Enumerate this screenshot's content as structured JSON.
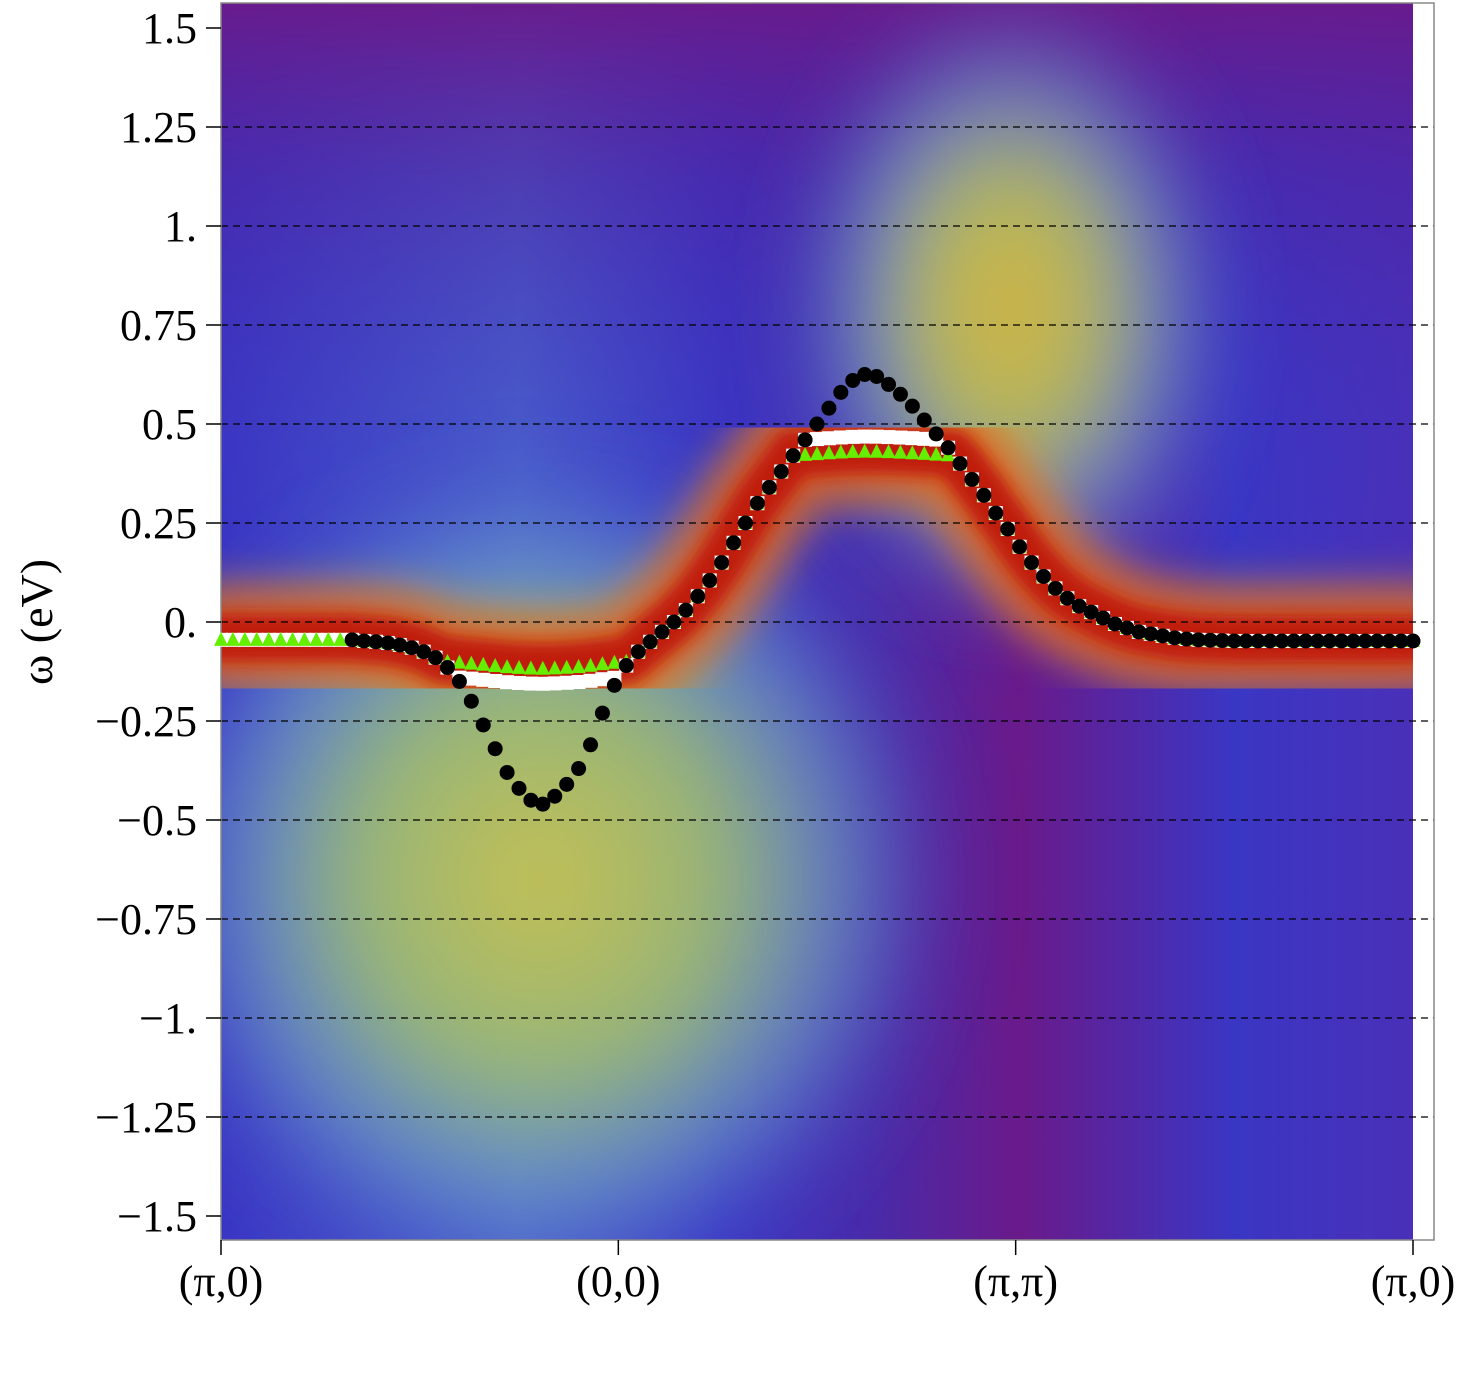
{
  "chart_data": {
    "type": "heatmap",
    "title": "",
    "xlabel": "",
    "ylabel": "ω (eV)",
    "ylim": [
      -1.57,
      1.57
    ],
    "xlim": [
      0,
      3
    ],
    "grid": "horizontal dashed lines at y ticks",
    "x_ticks": [
      {
        "x": 0,
        "label": "(π,0)"
      },
      {
        "x": 1,
        "label": "(0,0)"
      },
      {
        "x": 2,
        "label": "(π,π)"
      },
      {
        "x": 3,
        "label": "(π,0)"
      }
    ],
    "y_ticks": [
      {
        "y": 1.5,
        "label": "1.5"
      },
      {
        "y": 1.25,
        "label": "1.25"
      },
      {
        "y": 1.0,
        "label": "1."
      },
      {
        "y": 0.75,
        "label": "0.75"
      },
      {
        "y": 0.5,
        "label": "0.5"
      },
      {
        "y": 0.25,
        "label": "0.25"
      },
      {
        "y": 0.0,
        "label": "0."
      },
      {
        "y": -0.25,
        "label": "−0.25"
      },
      {
        "y": -0.5,
        "label": "−0.5"
      },
      {
        "y": -0.75,
        "label": "−0.75"
      },
      {
        "y": -1.0,
        "label": "−1."
      },
      {
        "y": -1.25,
        "label": "−1.25"
      },
      {
        "y": -1.5,
        "label": "−1.5"
      }
    ],
    "colors": {
      "low": "#6a1a8a",
      "mid_low": "#3a38c8",
      "mid": "#6aa0d0",
      "mid_high": "#c8c050",
      "high": "#c81a0a",
      "triangles": "#66ee00",
      "squares": "#ffffff",
      "circles": "#000000"
    },
    "series": [
      {
        "marker": "circle",
        "x": [
          0.33,
          0.36,
          0.39,
          0.42,
          0.45,
          0.48,
          0.51,
          0.54,
          0.57,
          0.6,
          0.63,
          0.66,
          0.69,
          0.72,
          0.75,
          0.78,
          0.81,
          0.84,
          0.87,
          0.9,
          0.93,
          0.96,
          0.99,
          1.02,
          1.05,
          1.08,
          1.11,
          1.14,
          1.17,
          1.2,
          1.23,
          1.26,
          1.29,
          1.32,
          1.35,
          1.38,
          1.41,
          1.44,
          1.47,
          1.5,
          1.53,
          1.56,
          1.59,
          1.62,
          1.65,
          1.68,
          1.71,
          1.74,
          1.77,
          1.8,
          1.83,
          1.86,
          1.89,
          1.92,
          1.95,
          1.98,
          2.01,
          2.04,
          2.07,
          2.1,
          2.13,
          2.16,
          2.19,
          2.22,
          2.25,
          2.28,
          2.31,
          2.34,
          2.37,
          2.4,
          2.43,
          2.46,
          2.49,
          2.52,
          2.55,
          2.58,
          2.61,
          2.64,
          2.67,
          2.7,
          2.73,
          2.76,
          2.79,
          2.82,
          2.85,
          2.88,
          2.91,
          2.94,
          2.97,
          3.0
        ],
        "y": [
          -0.045,
          -0.048,
          -0.05,
          -0.053,
          -0.058,
          -0.065,
          -0.075,
          -0.09,
          -0.115,
          -0.15,
          -0.2,
          -0.26,
          -0.32,
          -0.38,
          -0.42,
          -0.45,
          -0.46,
          -0.44,
          -0.41,
          -0.37,
          -0.31,
          -0.23,
          -0.16,
          -0.11,
          -0.075,
          -0.05,
          -0.025,
          0.0,
          0.03,
          0.065,
          0.105,
          0.15,
          0.2,
          0.25,
          0.3,
          0.34,
          0.38,
          0.42,
          0.46,
          0.5,
          0.54,
          0.58,
          0.61,
          0.625,
          0.62,
          0.6,
          0.575,
          0.545,
          0.51,
          0.475,
          0.44,
          0.4,
          0.36,
          0.32,
          0.275,
          0.235,
          0.19,
          0.15,
          0.115,
          0.085,
          0.06,
          0.04,
          0.025,
          0.01,
          -0.005,
          -0.015,
          -0.025,
          -0.03,
          -0.035,
          -0.04,
          -0.043,
          -0.045,
          -0.046,
          -0.047,
          -0.048,
          -0.048,
          -0.048,
          -0.048,
          -0.048,
          -0.048,
          -0.048,
          -0.048,
          -0.048,
          -0.048,
          -0.048,
          -0.048,
          -0.048,
          -0.048,
          -0.048,
          -0.048
        ]
      }
    ]
  }
}
